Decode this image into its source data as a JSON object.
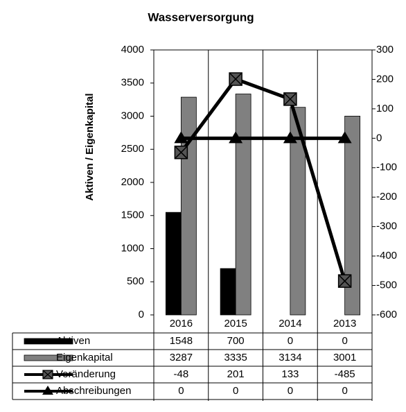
{
  "chart_data": {
    "type": "bar-line",
    "title": "Wasserversorgung",
    "ylabel": "Aktiven / Eigenkapital",
    "categories": [
      "2016",
      "2015",
      "2014",
      "2013"
    ],
    "ylim": [
      0,
      4000
    ],
    "yticks": [
      0,
      500,
      1000,
      1500,
      2000,
      2500,
      3000,
      3500,
      4000
    ],
    "y2lim": [
      -600,
      300
    ],
    "y2ticks": [
      -600,
      -500,
      -400,
      -300,
      -200,
      -100,
      0,
      100,
      200,
      300
    ],
    "series": [
      {
        "name": "Aktiven",
        "type": "bar",
        "color": "#000000",
        "values": [
          1548,
          700,
          0,
          0
        ]
      },
      {
        "name": "Eigenkapital",
        "type": "bar",
        "color": "#808080",
        "values": [
          3287,
          3335,
          3134,
          3001
        ]
      },
      {
        "name": "Veränderung",
        "type": "line",
        "marker": "square-x",
        "axis": "y2",
        "color": "#000000",
        "values": [
          -48,
          201,
          133,
          -485
        ]
      },
      {
        "name": "Abschreibungen",
        "type": "line",
        "marker": "triangle",
        "axis": "y2",
        "color": "#000000",
        "values": [
          0,
          0,
          0,
          0
        ]
      }
    ],
    "data_table": true
  }
}
